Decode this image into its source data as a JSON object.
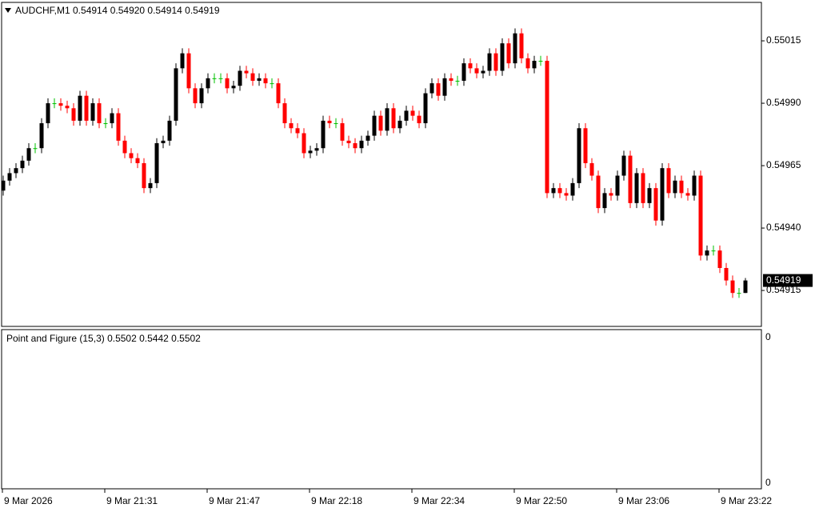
{
  "chart_data": {
    "type": "candlestick",
    "title": "AUDCHF,M1  0.54914 0.54920 0.54914 0.54919",
    "indicator_title": "Point and Figure (15,3) 0.5502 0.5442 0.5502",
    "indicator_scale_labels": [
      "0",
      "0"
    ],
    "current_price": 0.54919,
    "colors": {
      "up": "#000000",
      "down": "#ff0000",
      "doji": "#00c000"
    },
    "ylim": [
      0.549006,
      0.550304
    ],
    "yticks": [
      0.55015,
      {
        "value": 0.5499,
        "label": "0.54990"
      },
      0.54965,
      {
        "value": 0.5494,
        "label": "0.54940"
      },
      0.54915
    ],
    "categories": [
      "9 Mar 2026",
      null,
      null,
      null,
      null,
      null,
      null,
      null,
      null,
      null,
      null,
      null,
      null,
      null,
      null,
      null,
      "9 Mar 21:31",
      null,
      null,
      null,
      null,
      null,
      null,
      null,
      null,
      null,
      null,
      null,
      null,
      null,
      null,
      null,
      "9 Mar 21:47",
      null,
      null,
      null,
      null,
      null,
      null,
      null,
      null,
      null,
      null,
      null,
      null,
      null,
      null,
      null,
      "9 Mar 22:18",
      null,
      null,
      null,
      null,
      null,
      null,
      null,
      null,
      null,
      null,
      null,
      null,
      null,
      null,
      null,
      "9 Mar 22:34",
      null,
      null,
      null,
      null,
      null,
      null,
      null,
      null,
      null,
      null,
      null,
      null,
      null,
      null,
      null,
      "9 Mar 22:50",
      null,
      null,
      null,
      null,
      null,
      null,
      null,
      null,
      null,
      null,
      null,
      null,
      null,
      null,
      null,
      "9 Mar 23:06",
      null,
      null,
      null,
      null,
      null,
      null,
      null,
      null,
      null,
      null,
      null,
      null,
      null,
      null,
      null,
      "9 Mar 23:22",
      null,
      null,
      null,
      null
    ],
    "open": [
      0.54955,
      0.54959,
      0.54962,
      0.54964,
      0.54967,
      0.54972,
      0.54972,
      0.54982,
      0.5499,
      0.5499,
      0.54989,
      0.54988,
      0.54983,
      0.54993,
      0.54983,
      0.5499,
      0.54982,
      0.54982,
      0.54986,
      0.54975,
      0.5497,
      0.54968,
      0.54966,
      0.54956,
      0.54958,
      0.54974,
      0.54975,
      0.54983,
      0.55004,
      0.5501,
      0.54996,
      0.5499,
      0.54996,
      0.55,
      0.55,
      0.55,
      0.54996,
      0.54997,
      0.55003,
      0.55002,
      0.54999,
      0.55,
      0.54998,
      0.54998,
      0.5499,
      0.54982,
      0.5498,
      0.54978,
      0.5497,
      0.54971,
      0.54972,
      0.54983,
      0.54982,
      0.54982,
      0.54975,
      0.54974,
      0.54972,
      0.54975,
      0.54977,
      0.54985,
      0.54979,
      0.54988,
      0.5498,
      0.54983,
      0.54987,
      0.54985,
      0.54982,
      0.54994,
      0.54998,
      0.54993,
      0.55,
      0.54999,
      0.54999,
      0.55006,
      0.55004,
      0.55002,
      0.55003,
      0.5501,
      0.55003,
      0.55014,
      0.55006,
      0.55018,
      0.55008,
      0.55004,
      0.55007,
      0.55007,
      0.54954,
      0.54956,
      0.54954,
      0.54953,
      0.54958,
      0.5498,
      0.54966,
      0.54961,
      0.54948,
      0.54954,
      0.54953,
      0.54961,
      0.54969,
      0.5495,
      0.54962,
      0.5495,
      0.54956,
      0.54943,
      0.54964,
      0.54954,
      0.54959,
      0.54954,
      0.54953,
      0.54961,
      0.54929,
      0.54931,
      0.54931,
      0.54924,
      0.54919,
      0.54914,
      0.54914
    ],
    "close": [
      0.54959,
      0.54962,
      0.54964,
      0.54967,
      0.54972,
      0.54972,
      0.54982,
      0.5499,
      0.5499,
      0.54989,
      0.54988,
      0.54983,
      0.54993,
      0.54983,
      0.5499,
      0.54982,
      0.54982,
      0.54986,
      0.54975,
      0.5497,
      0.54968,
      0.54966,
      0.54956,
      0.54958,
      0.54974,
      0.54975,
      0.54983,
      0.55004,
      0.5501,
      0.54996,
      0.5499,
      0.54996,
      0.55,
      0.55,
      0.55,
      0.54996,
      0.54997,
      0.55003,
      0.55002,
      0.54999,
      0.55,
      0.54998,
      0.54998,
      0.5499,
      0.54982,
      0.5498,
      0.54978,
      0.5497,
      0.54971,
      0.54972,
      0.54983,
      0.54982,
      0.54982,
      0.54975,
      0.54974,
      0.54972,
      0.54975,
      0.54977,
      0.54985,
      0.54979,
      0.54988,
      0.5498,
      0.54983,
      0.54987,
      0.54985,
      0.54982,
      0.54994,
      0.54998,
      0.54993,
      0.55,
      0.54999,
      0.54999,
      0.55006,
      0.55004,
      0.55002,
      0.55003,
      0.5501,
      0.55003,
      0.55014,
      0.55006,
      0.55018,
      0.55008,
      0.55004,
      0.55007,
      0.55007,
      0.54954,
      0.54956,
      0.54954,
      0.54953,
      0.54958,
      0.5498,
      0.54966,
      0.54961,
      0.54948,
      0.54954,
      0.54953,
      0.54961,
      0.54969,
      0.5495,
      0.54962,
      0.5495,
      0.54956,
      0.54943,
      0.54964,
      0.54954,
      0.54959,
      0.54954,
      0.54953,
      0.54961,
      0.54929,
      0.54931,
      0.54931,
      0.54924,
      0.54919,
      0.54914,
      0.54914,
      0.54919
    ],
    "high": [
      0.54961,
      0.54964,
      0.54966,
      0.54969,
      0.54974,
      0.54974,
      0.54984,
      0.54992,
      0.54992,
      0.54992,
      0.54991,
      0.5499,
      0.54995,
      0.54995,
      0.54992,
      0.54992,
      0.54984,
      0.54988,
      0.54988,
      0.54977,
      0.54972,
      0.5497,
      0.54968,
      0.5496,
      0.54976,
      0.54977,
      0.54985,
      0.55006,
      0.55012,
      0.55012,
      0.54998,
      0.54998,
      0.55002,
      0.55002,
      0.55002,
      0.55002,
      0.54999,
      0.55005,
      0.55005,
      0.55004,
      0.55002,
      0.55002,
      0.55,
      0.55,
      0.54992,
      0.54984,
      0.54982,
      0.5498,
      0.54973,
      0.54974,
      0.54985,
      0.54985,
      0.54984,
      0.54984,
      0.54977,
      0.54976,
      0.54977,
      0.54979,
      0.54987,
      0.54987,
      0.5499,
      0.5499,
      0.54985,
      0.54989,
      0.54989,
      0.54987,
      0.54996,
      0.55,
      0.55,
      0.55002,
      0.55002,
      0.55001,
      0.55008,
      0.55008,
      0.55006,
      0.55005,
      0.55012,
      0.55012,
      0.55016,
      0.55016,
      0.5502,
      0.5502,
      0.5501,
      0.55009,
      0.55009,
      0.55009,
      0.54958,
      0.54958,
      0.54956,
      0.5496,
      0.54982,
      0.54982,
      0.54968,
      0.54963,
      0.54956,
      0.54956,
      0.54963,
      0.54971,
      0.54971,
      0.54964,
      0.54964,
      0.54958,
      0.54958,
      0.54966,
      0.54966,
      0.54961,
      0.54961,
      0.54956,
      0.54963,
      0.54963,
      0.54933,
      0.54933,
      0.54933,
      0.54926,
      0.54921,
      0.54916,
      0.5492
    ],
    "low": [
      0.54953,
      0.54957,
      0.5496,
      0.54962,
      0.54965,
      0.5497,
      0.5497,
      0.5498,
      0.54988,
      0.54987,
      0.54986,
      0.54981,
      0.54981,
      0.54981,
      0.54981,
      0.5498,
      0.5498,
      0.5498,
      0.54973,
      0.54968,
      0.54966,
      0.54964,
      0.54954,
      0.54954,
      0.54956,
      0.54972,
      0.54973,
      0.54981,
      0.55002,
      0.54994,
      0.54988,
      0.54988,
      0.54994,
      0.54998,
      0.54998,
      0.54994,
      0.54994,
      0.54995,
      0.55,
      0.54997,
      0.54997,
      0.54996,
      0.54996,
      0.54988,
      0.5498,
      0.54978,
      0.54976,
      0.54968,
      0.54968,
      0.54969,
      0.5497,
      0.5498,
      0.5498,
      0.54973,
      0.54972,
      0.5497,
      0.5497,
      0.54973,
      0.54975,
      0.54977,
      0.54977,
      0.54978,
      0.54978,
      0.54981,
      0.54983,
      0.5498,
      0.5498,
      0.54992,
      0.54991,
      0.54991,
      0.54997,
      0.54997,
      0.54997,
      0.55002,
      0.55,
      0.55,
      0.55001,
      0.55001,
      0.55001,
      0.55004,
      0.55004,
      0.55006,
      0.55002,
      0.55002,
      0.55005,
      0.54952,
      0.54952,
      0.54952,
      0.54951,
      0.54951,
      0.54956,
      0.54964,
      0.54959,
      0.54946,
      0.54946,
      0.54951,
      0.54951,
      0.54959,
      0.54948,
      0.54948,
      0.54948,
      0.54948,
      0.54941,
      0.54941,
      0.54952,
      0.54952,
      0.54952,
      0.54951,
      0.54951,
      0.54927,
      0.54927,
      0.54929,
      0.54922,
      0.54917,
      0.54912,
      0.54912,
      0.54914
    ]
  }
}
